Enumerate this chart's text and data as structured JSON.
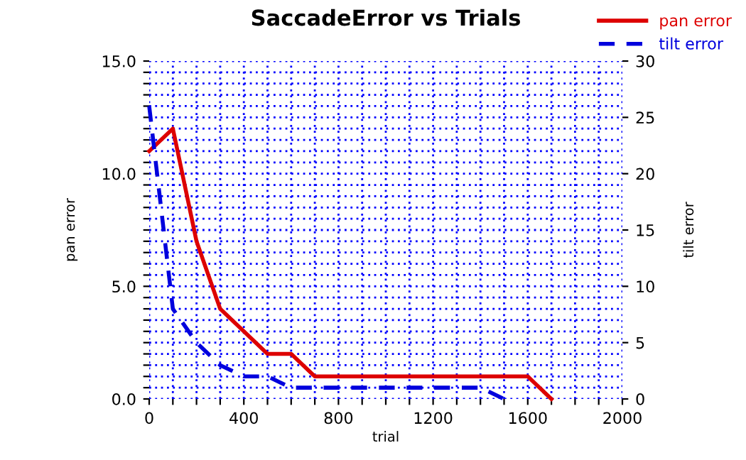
{
  "chart_data": {
    "type": "line",
    "title": "SaccadeError vs Trials",
    "xlabel": "trial",
    "ylabel": "pan error",
    "y2label": "tilt error",
    "series": [
      {
        "name": "pan error",
        "color": "#dd0000",
        "line_style": "solid",
        "x": [
          0,
          100,
          200,
          300,
          400,
          500,
          600,
          700,
          1600,
          1700
        ],
        "values": [
          11,
          12,
          7,
          4,
          3,
          2,
          2,
          1,
          1,
          0
        ]
      },
      {
        "name": "tilt error",
        "color": "#0000dd",
        "line_style": "dashed",
        "axis": "y2",
        "x": [
          0,
          100,
          200,
          300,
          400,
          500,
          600,
          1400,
          1500
        ],
        "values": [
          26,
          8,
          5,
          3,
          2,
          2,
          1,
          1,
          0
        ]
      }
    ],
    "xlim": [
      0,
      2000
    ],
    "xticks": [
      0,
      {
        "value": 100,
        "label": null
      },
      {
        "value": 200,
        "label": null
      },
      {
        "value": 300,
        "label": null
      },
      400,
      {
        "value": 500,
        "label": null
      },
      {
        "value": 600,
        "label": null
      },
      {
        "value": 700,
        "label": null
      },
      800,
      {
        "value": 900,
        "label": null
      },
      {
        "value": 1000,
        "label": null
      },
      {
        "value": 1100,
        "label": null
      },
      1200,
      {
        "value": 1300,
        "label": null
      },
      {
        "value": 1400,
        "label": null
      },
      {
        "value": 1500,
        "label": null
      },
      1600,
      {
        "value": 1700,
        "label": null
      },
      {
        "value": 1800,
        "label": null
      },
      {
        "value": 1900,
        "label": null
      },
      2000
    ],
    "ylim": [
      0,
      15
    ],
    "yticks": [
      {
        "value": 0,
        "label": "0.0"
      },
      {
        "value": 0.5,
        "label": null
      },
      {
        "value": 1,
        "label": null
      },
      {
        "value": 1.5,
        "label": null
      },
      {
        "value": 2,
        "label": null
      },
      {
        "value": 2.5,
        "label": null
      },
      {
        "value": 3,
        "label": null
      },
      {
        "value": 3.5,
        "label": null
      },
      {
        "value": 4,
        "label": null
      },
      {
        "value": 4.5,
        "label": null
      },
      {
        "value": 5,
        "label": "5.0"
      },
      {
        "value": 5.5,
        "label": null
      },
      {
        "value": 6,
        "label": null
      },
      {
        "value": 6.5,
        "label": null
      },
      {
        "value": 7,
        "label": null
      },
      {
        "value": 7.5,
        "label": null
      },
      {
        "value": 8,
        "label": null
      },
      {
        "value": 8.5,
        "label": null
      },
      {
        "value": 9,
        "label": null
      },
      {
        "value": 9.5,
        "label": null
      },
      {
        "value": 10,
        "label": "10.0"
      },
      {
        "value": 10.5,
        "label": null
      },
      {
        "value": 11,
        "label": null
      },
      {
        "value": 11.5,
        "label": null
      },
      {
        "value": 12,
        "label": null
      },
      {
        "value": 12.5,
        "label": null
      },
      {
        "value": 13,
        "label": null
      },
      {
        "value": 13.5,
        "label": null
      },
      {
        "value": 14,
        "label": null
      },
      {
        "value": 14.5,
        "label": null
      },
      {
        "value": 15,
        "label": "15.0"
      }
    ],
    "y2lim": [
      0,
      30
    ],
    "y2ticks": [
      0,
      5,
      10,
      15,
      20,
      25,
      30
    ],
    "grid": true,
    "legend": "top right",
    "marker": "none"
  }
}
